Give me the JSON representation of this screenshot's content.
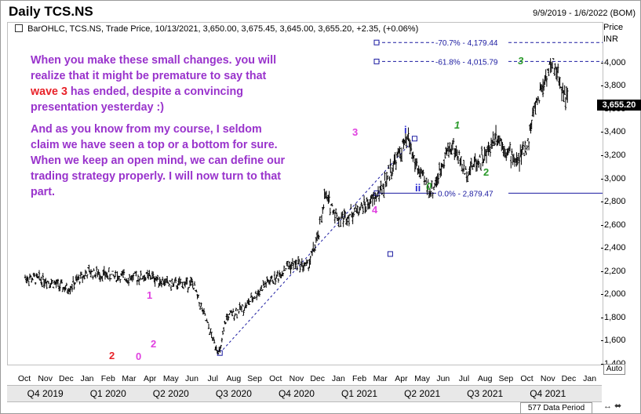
{
  "header": {
    "title": "Daily TCS.NS",
    "date_range": "9/9/2019 - 1/6/2022 (BOM)"
  },
  "legend": {
    "text": "BarOHLC, TCS.NS, Trade Price, 10/13/2021, 3,650.00, 3,675.45, 3,645.00, 3,655.20, +2.35, (+0.06%)"
  },
  "axis": {
    "price_label": "Price",
    "currency_label": "INR",
    "last_price": "3,655.20",
    "auto_label": "Auto"
  },
  "annotation": {
    "p1_a": "When you make these small changes. you will realize that it might be premature to say that ",
    "p1_hl": "wave 3",
    "p1_b": " has ended, despite a convincing presentation yesterday :)",
    "p2": "And as you know from my course, I seldom claim we have seen a top or a bottom for sure. When we keep an open mind, we can define our trading strategy properly. I will now turn to that part."
  },
  "waves": {
    "w2_red": "2",
    "w0_pink": "0",
    "w1_pink": "1",
    "w2_pink": "2",
    "w3_pink": "3",
    "w4_pink": "4",
    "wi_blue": "i",
    "wii_blue": "ii",
    "w0_green": "0",
    "w1_green": "1",
    "w2_green": "2",
    "w3_green": "3"
  },
  "colors": {
    "annotation": "#9933cc",
    "highlight": "#e8232a",
    "pink": "#e040e0",
    "blue": "#2828d0",
    "green": "#2a9a2a",
    "red": "#e8232a",
    "fib_line": "#1a1aa0"
  },
  "status": {
    "data_period": "577 Data Period"
  },
  "chart_data": {
    "type": "ohlc",
    "ylim": [
      1400,
      4350
    ],
    "y_ticks": [
      "1,400",
      "1,600",
      "1,800",
      "2,000",
      "2,200",
      "2,400",
      "2,600",
      "2,800",
      "3,000",
      "3,200",
      "3,400",
      "3,600",
      "3,800",
      "4,000"
    ],
    "y_tick_values": [
      1400,
      1600,
      1800,
      2000,
      2200,
      2400,
      2600,
      2800,
      3000,
      3200,
      3400,
      3600,
      3800,
      4000
    ],
    "months": [
      "Oct",
      "Nov",
      "Dec",
      "Jan",
      "Feb",
      "Mar",
      "Apr",
      "May",
      "Jun",
      "Jul",
      "Aug",
      "Sep",
      "Oct",
      "Nov",
      "Dec",
      "Jan",
      "Feb",
      "Mar",
      "Apr",
      "May",
      "Jun",
      "Jul",
      "Aug",
      "Sep",
      "Oct",
      "Nov",
      "Dec",
      "Jan"
    ],
    "quarters": [
      "Q4 2019",
      "Q1 2020",
      "Q2 2020",
      "Q3 2020",
      "Q4 2020",
      "Q1 2021",
      "Q2 2021",
      "Q3 2021",
      "Q4 2021"
    ],
    "price_path": [
      [
        0,
        2150
      ],
      [
        1,
        2130
      ],
      [
        2,
        2050
      ],
      [
        3,
        2200
      ],
      [
        4,
        2170
      ],
      [
        5,
        2150
      ],
      [
        6,
        2160
      ],
      [
        7,
        2090
      ],
      [
        8,
        2100
      ],
      [
        9,
        1600
      ],
      [
        9.3,
        1500
      ],
      [
        9.6,
        1800
      ],
      [
        10,
        1850
      ],
      [
        10.5,
        1900
      ],
      [
        11,
        2000
      ],
      [
        11.5,
        2100
      ],
      [
        12,
        2150
      ],
      [
        12.5,
        2250
      ],
      [
        13,
        2270
      ],
      [
        13.5,
        2250
      ],
      [
        14,
        2500
      ],
      [
        14.3,
        2850
      ],
      [
        14.6,
        2780
      ],
      [
        15,
        2650
      ],
      [
        15.5,
        2700
      ],
      [
        16,
        2750
      ],
      [
        16.5,
        2800
      ],
      [
        17,
        2900
      ],
      [
        17.5,
        3100
      ],
      [
        18.3,
        3350
      ],
      [
        18.6,
        3150
      ],
      [
        19,
        3000
      ],
      [
        19.4,
        2890
      ],
      [
        19.8,
        3050
      ],
      [
        20,
        3200
      ],
      [
        20.4,
        3300
      ],
      [
        20.8,
        3150
      ],
      [
        21,
        3050
      ],
      [
        21.5,
        3150
      ],
      [
        22,
        3200
      ],
      [
        22.5,
        3400
      ],
      [
        23,
        3250
      ],
      [
        23.5,
        3150
      ],
      [
        24,
        3300
      ],
      [
        24.3,
        3600
      ],
      [
        24.6,
        3750
      ],
      [
        25,
        3950
      ],
      [
        25.3,
        3980
      ],
      [
        25.6,
        3800
      ],
      [
        25.9,
        3700
      ]
    ],
    "fib_levels": [
      {
        "label": "-70.7% - 4,179.44",
        "value": 4179.44
      },
      {
        "label": "-61.8% - 4,015.79",
        "value": 4015.79
      },
      {
        "label": "0.0% - 2,879.47",
        "value": 2879.47
      }
    ],
    "trendline": {
      "from": [
        9.3,
        1500
      ],
      "to": [
        18.6,
        3350
      ]
    }
  }
}
